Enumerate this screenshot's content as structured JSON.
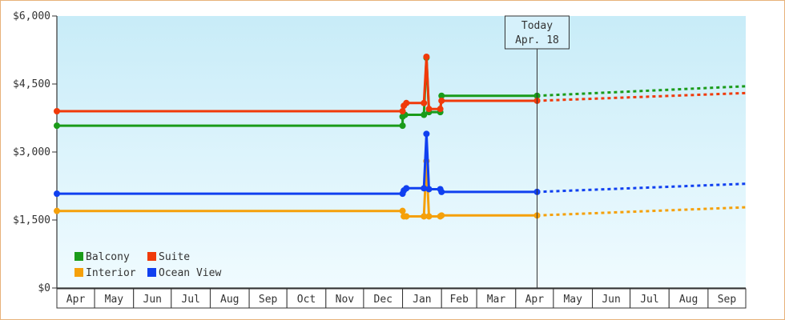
{
  "chart_data": {
    "type": "line",
    "title": "",
    "xlabel": "",
    "ylabel": "",
    "ylim": [
      0,
      6000
    ],
    "y_ticks": [
      "$0",
      "$1,500",
      "$3,000",
      "$4,500",
      "$6,000"
    ],
    "y_tick_values": [
      0,
      1500,
      3000,
      4500,
      6000
    ],
    "x_months": [
      "Apr",
      "May",
      "Jun",
      "Jul",
      "Aug",
      "Sep",
      "Oct",
      "Nov",
      "Dec",
      "Jan",
      "Feb",
      "Mar",
      "Apr",
      "May",
      "Jun",
      "Jul",
      "Aug",
      "Sep"
    ],
    "x_start": "2017-04-01",
    "x_end": "2018-10-01",
    "today": {
      "date": "2018-04-18",
      "label_line1": "Today",
      "label_line2": "Apr. 18"
    },
    "legend_placement": "bottom-left",
    "series": [
      {
        "name": "Balcony",
        "color": "#1a9b1a",
        "points": [
          [
            "2017-04-01",
            3580
          ],
          [
            "2018-01-01",
            3580
          ],
          [
            "2018-01-01",
            3780
          ],
          [
            "2018-01-03",
            3820
          ],
          [
            "2018-01-18",
            3820
          ],
          [
            "2018-01-20",
            5080
          ],
          [
            "2018-01-22",
            3880
          ],
          [
            "2018-01-31",
            3880
          ],
          [
            "2018-02-01",
            4240
          ],
          [
            "2018-04-18",
            4240
          ]
        ],
        "forecast": [
          [
            "2018-04-18",
            4240
          ],
          [
            "2018-10-01",
            4450
          ]
        ]
      },
      {
        "name": "Suite",
        "color": "#f03a0a",
        "points": [
          [
            "2017-04-01",
            3900
          ],
          [
            "2018-01-01",
            3900
          ],
          [
            "2018-01-02",
            4020
          ],
          [
            "2018-01-04",
            4080
          ],
          [
            "2018-01-18",
            4080
          ],
          [
            "2018-01-20",
            5100
          ],
          [
            "2018-01-22",
            3950
          ],
          [
            "2018-01-31",
            3950
          ],
          [
            "2018-02-01",
            4130
          ],
          [
            "2018-04-18",
            4130
          ]
        ],
        "forecast": [
          [
            "2018-04-18",
            4130
          ],
          [
            "2018-10-01",
            4300
          ]
        ]
      },
      {
        "name": "Interior",
        "color": "#f5a00a",
        "points": [
          [
            "2017-04-01",
            1700
          ],
          [
            "2018-01-01",
            1700
          ],
          [
            "2018-01-02",
            1580
          ],
          [
            "2018-01-04",
            1580
          ],
          [
            "2018-01-18",
            1580
          ],
          [
            "2018-01-20",
            2800
          ],
          [
            "2018-01-22",
            1580
          ],
          [
            "2018-01-31",
            1580
          ],
          [
            "2018-02-01",
            1600
          ],
          [
            "2018-04-18",
            1600
          ]
        ],
        "forecast": [
          [
            "2018-04-18",
            1600
          ],
          [
            "2018-10-01",
            1780
          ]
        ]
      },
      {
        "name": "Ocean View",
        "color": "#1040f0",
        "points": [
          [
            "2017-04-01",
            2080
          ],
          [
            "2018-01-01",
            2080
          ],
          [
            "2018-01-02",
            2150
          ],
          [
            "2018-01-04",
            2200
          ],
          [
            "2018-01-18",
            2200
          ],
          [
            "2018-01-20",
            3400
          ],
          [
            "2018-01-22",
            2180
          ],
          [
            "2018-01-31",
            2180
          ],
          [
            "2018-02-01",
            2120
          ],
          [
            "2018-04-18",
            2120
          ]
        ],
        "forecast": [
          [
            "2018-04-18",
            2120
          ],
          [
            "2018-10-01",
            2300
          ]
        ]
      }
    ]
  }
}
